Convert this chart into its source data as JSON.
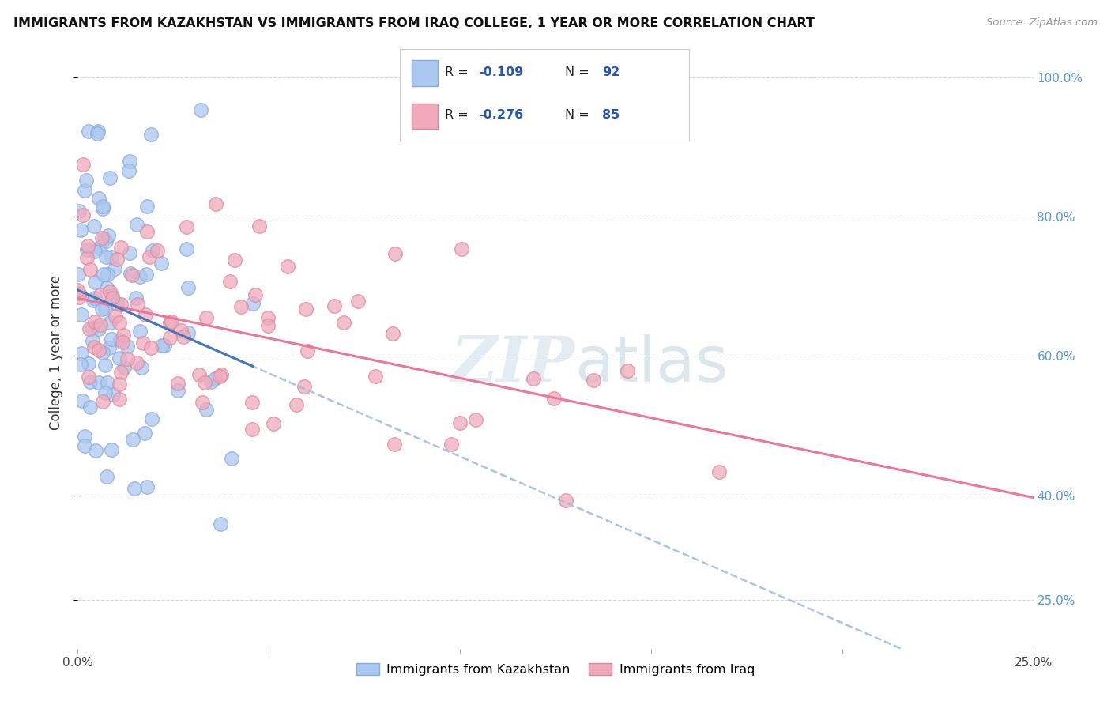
{
  "title": "IMMIGRANTS FROM KAZAKHSTAN VS IMMIGRANTS FROM IRAQ COLLEGE, 1 YEAR OR MORE CORRELATION CHART",
  "source": "Source: ZipAtlas.com",
  "ylabel": "College, 1 year or more",
  "xlim": [
    0.0,
    0.25
  ],
  "ylim": [
    0.18,
    1.03
  ],
  "kaz_color": "#aac8f0",
  "kaz_edge_color": "#88aadd",
  "iraq_color": "#f0aabb",
  "iraq_edge_color": "#dd8899",
  "kaz_line_color": "#4477bb",
  "iraq_line_color": "#ee7799",
  "kaz_dash_color": "#99bbdd",
  "watermark_color": "#ccdde8",
  "kaz_R": -0.109,
  "kaz_N": 92,
  "iraq_R": -0.276,
  "iraq_N": 85,
  "background_color": "#ffffff",
  "grid_color": "#cccccc",
  "right_axis_color": "#5599dd",
  "title_color": "#111111",
  "source_color": "#999999",
  "yticks": [
    0.25,
    0.4,
    0.6,
    0.8,
    1.0
  ],
  "ytick_labels": [
    "25.0%",
    "40.0%",
    "60.0%",
    "80.0%",
    "100.0%"
  ],
  "xtick_labels_show": [
    "0.0%",
    "25.0%"
  ],
  "legend_kaz_label": "R = -0.109   N = 92",
  "legend_iraq_label": "R = -0.276   N = 85",
  "bottom_legend_kaz": "Immigrants from Kazakhstan",
  "bottom_legend_iraq": "Immigrants from Iraq"
}
